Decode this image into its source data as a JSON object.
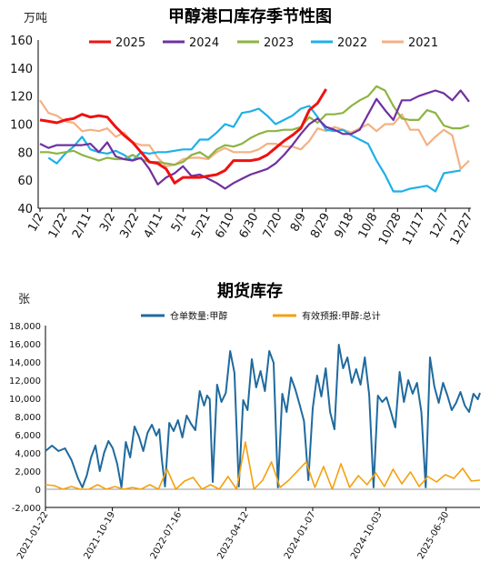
{
  "colors": {
    "s2025": "#ee1111",
    "s2024": "#7030a0",
    "s2023": "#8db442",
    "s2022": "#1eb0e8",
    "s2021": "#f4b183",
    "cangdan": "#1f6a9e",
    "yubao": "#f5a00d"
  },
  "chart_data": [
    {
      "type": "line",
      "title": "甲醇港口库存季节性图",
      "unit": "万吨",
      "ylim": [
        40,
        160
      ],
      "yticks": [
        "40",
        "60",
        "80",
        "100",
        "120",
        "140",
        "160"
      ],
      "xticks": [
        "1/2",
        "1/22",
        "2/11",
        "3/2",
        "3/22",
        "4/11",
        "5/1",
        "5/21",
        "6/10",
        "6/30",
        "7/20",
        "8/9",
        "8/29",
        "9/18",
        "10/8",
        "10/28",
        "11/17",
        "12/7",
        "12/27"
      ],
      "legend": [
        "2025",
        "2024",
        "2023",
        "2022",
        "2021"
      ],
      "series": [
        {
          "name": "2025",
          "color_key": "s2025",
          "x": [
            0,
            1,
            2,
            3,
            4,
            5,
            6,
            7,
            8,
            9,
            10,
            11,
            12,
            13,
            14,
            15,
            16,
            17,
            18,
            19,
            20,
            21,
            22,
            23,
            24,
            25,
            26,
            27,
            28,
            29,
            30,
            31,
            32,
            33,
            34
          ],
          "values": [
            103,
            102,
            101,
            103,
            104,
            107,
            105,
            106,
            105,
            98,
            92,
            87,
            80,
            73,
            72,
            68,
            58,
            62,
            62,
            62,
            63,
            64,
            67,
            74,
            74,
            74,
            75,
            78,
            83,
            88,
            92,
            97,
            110,
            115,
            125
          ]
        },
        {
          "name": "2024",
          "color_key": "s2024",
          "x": [
            0,
            1,
            2,
            3,
            4,
            5,
            6,
            7,
            8,
            9,
            10,
            11,
            12,
            13,
            14,
            15,
            16,
            17,
            18,
            19,
            20,
            21,
            22,
            23,
            24,
            25,
            26,
            27,
            28,
            29,
            30,
            31,
            32,
            33,
            34,
            35,
            36,
            37,
            38,
            39,
            40,
            41,
            42,
            43,
            44,
            45,
            46,
            47,
            48,
            49,
            50,
            51
          ],
          "values": [
            86,
            83,
            85,
            85,
            85,
            85,
            86,
            80,
            87,
            77,
            75,
            74,
            76,
            68,
            57,
            62,
            65,
            70,
            63,
            64,
            61,
            58,
            54,
            58,
            61,
            64,
            66,
            68,
            72,
            78,
            85,
            93,
            100,
            104,
            98,
            96,
            93,
            93,
            96,
            107,
            118,
            110,
            103,
            117,
            117,
            120,
            122,
            124,
            122,
            117,
            124,
            116
          ]
        },
        {
          "name": "2023",
          "color_key": "s2023",
          "x": [
            0,
            1,
            2,
            3,
            4,
            5,
            6,
            7,
            8,
            9,
            10,
            11,
            12,
            13,
            14,
            15,
            16,
            17,
            18,
            19,
            20,
            21,
            22,
            23,
            24,
            25,
            26,
            27,
            28,
            29,
            30,
            31,
            32,
            33,
            34,
            35,
            36,
            37,
            38,
            39,
            40,
            41,
            42,
            43,
            44,
            45,
            46,
            47,
            48,
            49,
            50,
            51
          ],
          "values": [
            80,
            80,
            79,
            80,
            81,
            78,
            76,
            74,
            76,
            75,
            75,
            78,
            75,
            73,
            73,
            72,
            71,
            73,
            78,
            80,
            76,
            82,
            85,
            84,
            86,
            90,
            93,
            95,
            95,
            96,
            96,
            98,
            105,
            101,
            107,
            107,
            108,
            113,
            117,
            120,
            127,
            124,
            113,
            104,
            103,
            103,
            110,
            108,
            99,
            97,
            97,
            99
          ]
        },
        {
          "name": "2022",
          "color_key": "s2022",
          "x": [
            1,
            2,
            3,
            4,
            5,
            6,
            7,
            8,
            9,
            10,
            11,
            12,
            13,
            14,
            15,
            16,
            17,
            18,
            19,
            20,
            21,
            22,
            23,
            24,
            25,
            26,
            27,
            28,
            29,
            30,
            31,
            32,
            33,
            34,
            35,
            36,
            37,
            38,
            39,
            40,
            41,
            42,
            43,
            44,
            45,
            46,
            47,
            48,
            49,
            50
          ],
          "values": [
            76,
            72,
            79,
            84,
            91,
            82,
            80,
            79,
            81,
            78,
            74,
            80,
            79,
            80,
            80,
            81,
            82,
            82,
            89,
            89,
            94,
            100,
            98,
            108,
            109,
            111,
            106,
            100,
            103,
            106,
            111,
            113,
            105,
            96,
            95,
            96,
            92,
            89,
            86,
            74,
            64,
            52,
            52,
            54,
            55,
            56,
            52,
            65,
            66,
            67
          ]
        },
        {
          "name": "2021",
          "color_key": "s2021",
          "x": [
            0,
            1,
            2,
            3,
            4,
            5,
            6,
            7,
            8,
            9,
            10,
            11,
            12,
            13,
            14,
            15,
            16,
            17,
            18,
            19,
            20,
            21,
            22,
            23,
            24,
            25,
            26,
            27,
            28,
            29,
            30,
            31,
            32,
            33,
            34,
            35,
            36,
            37,
            38,
            39,
            40,
            41,
            42,
            43,
            44,
            45,
            46,
            47,
            48,
            49,
            50,
            51
          ],
          "values": [
            117,
            108,
            106,
            102,
            101,
            95,
            96,
            95,
            97,
            91,
            94,
            87,
            85,
            85,
            76,
            70,
            71,
            75,
            76,
            76,
            75,
            80,
            83,
            80,
            80,
            80,
            82,
            86,
            86,
            84,
            84,
            82,
            88,
            97,
            95,
            98,
            96,
            94,
            97,
            100,
            95,
            100,
            100,
            107,
            96,
            96,
            85,
            91,
            96,
            92,
            68,
            74
          ]
        }
      ]
    },
    {
      "type": "line",
      "title": "期货库存",
      "unit": "张",
      "ylim": [
        -2000,
        18000
      ],
      "yticks": [
        "-2,000",
        "0",
        "2,000",
        "4,000",
        "6,000",
        "8,000",
        "10,000",
        "12,000",
        "14,000",
        "16,000",
        "18,000"
      ],
      "xticks": [
        "2021-01-22",
        "2021-10-19",
        "2022-07-16",
        "2023-04-12",
        "2024-01-07",
        "2024-10-03",
        "2025-06-30"
      ],
      "legend": [
        "仓单数量:甲醇",
        "有效预报:甲醇:总计"
      ],
      "series": [
        {
          "name": "仓单数量:甲醇",
          "color_key": "cangdan",
          "x": [
            0.0,
            0.015,
            0.03,
            0.045,
            0.06,
            0.075,
            0.085,
            0.095,
            0.105,
            0.115,
            0.125,
            0.135,
            0.145,
            0.155,
            0.165,
            0.175,
            0.185,
            0.195,
            0.205,
            0.215,
            0.225,
            0.235,
            0.245,
            0.255,
            0.262,
            0.268,
            0.275,
            0.285,
            0.295,
            0.305,
            0.315,
            0.325,
            0.335,
            0.345,
            0.355,
            0.365,
            0.372,
            0.378,
            0.385,
            0.395,
            0.405,
            0.415,
            0.425,
            0.435,
            0.445,
            0.455,
            0.465,
            0.475,
            0.485,
            0.495,
            0.505,
            0.515,
            0.525,
            0.535,
            0.545,
            0.555,
            0.565,
            0.575,
            0.585,
            0.595,
            0.605,
            0.615,
            0.625,
            0.635,
            0.645,
            0.655,
            0.665,
            0.675,
            0.685,
            0.695,
            0.705,
            0.715,
            0.725,
            0.735,
            0.745,
            0.755,
            0.765,
            0.775,
            0.785,
            0.795,
            0.805,
            0.815,
            0.825,
            0.835,
            0.845,
            0.855,
            0.865,
            0.875,
            0.885,
            0.895,
            0.905,
            0.915,
            0.925,
            0.935,
            0.945,
            0.955,
            0.965,
            0.975,
            0.985,
            0.995,
            1.0
          ],
          "values": [
            4200,
            4800,
            4200,
            4500,
            3200,
            1200,
            200,
            1500,
            3500,
            4800,
            2000,
            4000,
            5300,
            4500,
            2800,
            200,
            5200,
            3500,
            6900,
            5800,
            4200,
            6200,
            7100,
            5900,
            6600,
            3200,
            300,
            7300,
            6400,
            7600,
            5700,
            8100,
            7200,
            6500,
            10800,
            9200,
            10300,
            9900,
            800,
            11500,
            9600,
            10600,
            15200,
            12800,
            300,
            9800,
            8700,
            14300,
            11200,
            13000,
            10800,
            15200,
            13900,
            200,
            10500,
            8500,
            12300,
            11000,
            9300,
            7500,
            1000,
            8900,
            12500,
            10200,
            13300,
            8500,
            6600,
            15900,
            13300,
            14500,
            11700,
            13200,
            11500,
            14500,
            10400,
            200,
            10300,
            9600,
            10100,
            8500,
            6800,
            12900,
            9600,
            12000,
            10500,
            11700,
            8500,
            200,
            14500,
            11300,
            9500,
            11700,
            10300,
            8700,
            9500,
            10700,
            9200,
            8500,
            10500,
            9900,
            10600
          ]
        },
        {
          "name": "有效预报:甲醇:总计",
          "color_key": "yubao",
          "x": [
            0.0,
            0.02,
            0.04,
            0.06,
            0.08,
            0.1,
            0.12,
            0.14,
            0.16,
            0.18,
            0.2,
            0.22,
            0.24,
            0.26,
            0.28,
            0.3,
            0.32,
            0.34,
            0.36,
            0.38,
            0.4,
            0.42,
            0.44,
            0.46,
            0.48,
            0.5,
            0.52,
            0.54,
            0.56,
            0.58,
            0.6,
            0.62,
            0.64,
            0.66,
            0.68,
            0.7,
            0.72,
            0.74,
            0.76,
            0.78,
            0.8,
            0.82,
            0.84,
            0.86,
            0.88,
            0.9,
            0.92,
            0.94,
            0.96,
            0.98,
            1.0
          ],
          "values": [
            500,
            400,
            0,
            300,
            0,
            0,
            500,
            0,
            300,
            0,
            200,
            0,
            500,
            0,
            2200,
            0,
            900,
            1300,
            0,
            500,
            0,
            1400,
            0,
            5200,
            0,
            1000,
            3000,
            200,
            1000,
            2000,
            3000,
            200,
            2500,
            0,
            2800,
            200,
            1500,
            500,
            1800,
            300,
            2200,
            600,
            1900,
            300,
            1400,
            800,
            1600,
            1200,
            2300,
            900,
            1000
          ]
        }
      ]
    }
  ]
}
